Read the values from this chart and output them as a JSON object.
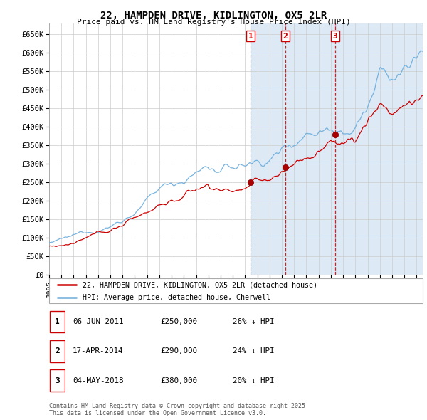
{
  "title": "22, HAMPDEN DRIVE, KIDLINGTON, OX5 2LR",
  "subtitle": "Price paid vs. HM Land Registry's House Price Index (HPI)",
  "ylim": [
    0,
    680000
  ],
  "yticks": [
    0,
    50000,
    100000,
    150000,
    200000,
    250000,
    300000,
    350000,
    400000,
    450000,
    500000,
    550000,
    600000,
    650000
  ],
  "ytick_labels": [
    "£0",
    "£50K",
    "£100K",
    "£150K",
    "£200K",
    "£250K",
    "£300K",
    "£350K",
    "£400K",
    "£450K",
    "£500K",
    "£550K",
    "£600K",
    "£650K"
  ],
  "hpi_color": "#6aacdc",
  "price_color": "#cc0000",
  "bg_shaded_color": "#ddeaf6",
  "grid_color": "#cccccc",
  "sale_dates": [
    2011.44,
    2014.29,
    2018.34
  ],
  "sale_prices": [
    250000,
    290000,
    380000
  ],
  "sale_labels": [
    "1",
    "2",
    "3"
  ],
  "vline_color_1": "#aaaaaa",
  "vline_color_23": "#cc0000",
  "legend_entries": [
    "22, HAMPDEN DRIVE, KIDLINGTON, OX5 2LR (detached house)",
    "HPI: Average price, detached house, Cherwell"
  ],
  "table_data": [
    [
      "1",
      "06-JUN-2011",
      "£250,000",
      "26% ↓ HPI"
    ],
    [
      "2",
      "17-APR-2014",
      "£290,000",
      "24% ↓ HPI"
    ],
    [
      "3",
      "04-MAY-2018",
      "£380,000",
      "20% ↓ HPI"
    ]
  ],
  "footer": "Contains HM Land Registry data © Crown copyright and database right 2025.\nThis data is licensed under the Open Government Licence v3.0.",
  "xlim": [
    1995.0,
    2025.5
  ],
  "xlabel_years": [
    1995,
    1996,
    1997,
    1998,
    1999,
    2000,
    2001,
    2002,
    2003,
    2004,
    2005,
    2006,
    2007,
    2008,
    2009,
    2010,
    2011,
    2012,
    2013,
    2014,
    2015,
    2016,
    2017,
    2018,
    2019,
    2020,
    2021,
    2022,
    2023,
    2024,
    2025
  ]
}
